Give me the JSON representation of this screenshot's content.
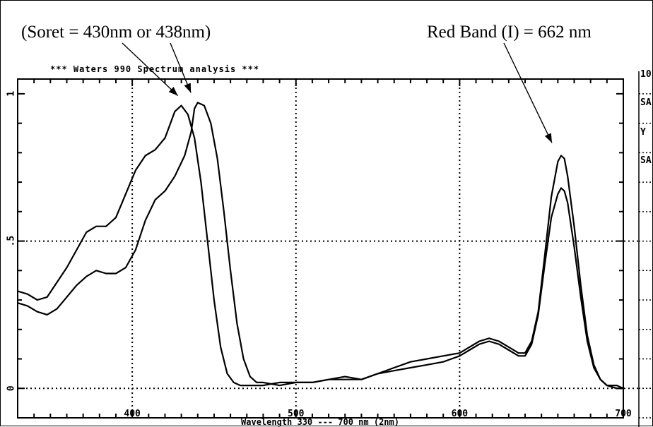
{
  "chart_data": {
    "type": "line",
    "header": "***  Waters 990  Spectrum  analysis  ***",
    "xlabel": "Wavelength  330 --- 700 nm (2nm)",
    "ylabel": "",
    "xlim": [
      330,
      700
    ],
    "ylim": [
      -0.1,
      1.05
    ],
    "x_ticks": [
      400,
      500,
      600,
      700
    ],
    "x_tick_labels": [
      "400",
      "500",
      "600",
      "700"
    ],
    "y_ticks": [
      0,
      0.5,
      1
    ],
    "y_tick_labels": [
      "0",
      ".5",
      "1"
    ],
    "grid": "dotted at x=400,500,600 and y=0,0.5",
    "right_panel_fragments": [
      "10",
      "SA",
      "Y",
      "SA"
    ],
    "annotations": [
      {
        "id": "soret",
        "text": "(Soret = 430nm  or 438nm)",
        "targets": [
          [
            430,
            0.96
          ],
          [
            438,
            0.97
          ]
        ]
      },
      {
        "id": "red",
        "text": "Red Band (I) = 662 nm",
        "targets": [
          [
            662,
            0.8
          ]
        ]
      }
    ],
    "series": [
      {
        "x": [
          330,
          336,
          342,
          348,
          354,
          360,
          366,
          372,
          378,
          384,
          390,
          396,
          402,
          408,
          414,
          420,
          426,
          430,
          434,
          438,
          442,
          446,
          450,
          454,
          458,
          462,
          466,
          470,
          474,
          480,
          490,
          500,
          510,
          520,
          530,
          540,
          550,
          560,
          570,
          580,
          590,
          600,
          606,
          612,
          618,
          624,
          630,
          636,
          640,
          644,
          648,
          652,
          656,
          660,
          662,
          664,
          666,
          670,
          674,
          678,
          682,
          686,
          690,
          696,
          700
        ],
        "y": [
          0.33,
          0.32,
          0.3,
          0.31,
          0.36,
          0.41,
          0.47,
          0.53,
          0.55,
          0.55,
          0.58,
          0.66,
          0.74,
          0.79,
          0.81,
          0.85,
          0.94,
          0.96,
          0.93,
          0.85,
          0.7,
          0.5,
          0.3,
          0.14,
          0.05,
          0.02,
          0.01,
          0.01,
          0.01,
          0.01,
          0.02,
          0.02,
          0.02,
          0.03,
          0.03,
          0.03,
          0.05,
          0.07,
          0.09,
          0.1,
          0.11,
          0.12,
          0.14,
          0.16,
          0.17,
          0.16,
          0.14,
          0.12,
          0.12,
          0.16,
          0.26,
          0.45,
          0.65,
          0.77,
          0.79,
          0.78,
          0.72,
          0.55,
          0.35,
          0.18,
          0.08,
          0.03,
          0.01,
          0.01,
          0.0
        ]
      },
      {
        "x": [
          330,
          336,
          342,
          348,
          354,
          360,
          366,
          372,
          378,
          384,
          390,
          396,
          402,
          408,
          414,
          420,
          426,
          432,
          436,
          438,
          440,
          444,
          448,
          452,
          456,
          460,
          464,
          468,
          472,
          476,
          480,
          490,
          500,
          510,
          520,
          530,
          540,
          550,
          560,
          570,
          580,
          590,
          600,
          606,
          612,
          618,
          624,
          630,
          636,
          640,
          644,
          648,
          652,
          656,
          660,
          662,
          664,
          666,
          670,
          674,
          678,
          682,
          686,
          690,
          696,
          700
        ],
        "y": [
          0.29,
          0.28,
          0.26,
          0.25,
          0.27,
          0.31,
          0.35,
          0.38,
          0.4,
          0.39,
          0.39,
          0.41,
          0.47,
          0.57,
          0.64,
          0.67,
          0.72,
          0.79,
          0.87,
          0.95,
          0.97,
          0.96,
          0.9,
          0.78,
          0.6,
          0.4,
          0.22,
          0.1,
          0.04,
          0.02,
          0.02,
          0.01,
          0.02,
          0.02,
          0.03,
          0.04,
          0.03,
          0.05,
          0.06,
          0.07,
          0.08,
          0.09,
          0.11,
          0.13,
          0.15,
          0.16,
          0.15,
          0.13,
          0.11,
          0.11,
          0.15,
          0.25,
          0.42,
          0.58,
          0.66,
          0.68,
          0.67,
          0.63,
          0.48,
          0.31,
          0.16,
          0.07,
          0.03,
          0.01,
          0.0,
          0.0
        ]
      }
    ]
  }
}
